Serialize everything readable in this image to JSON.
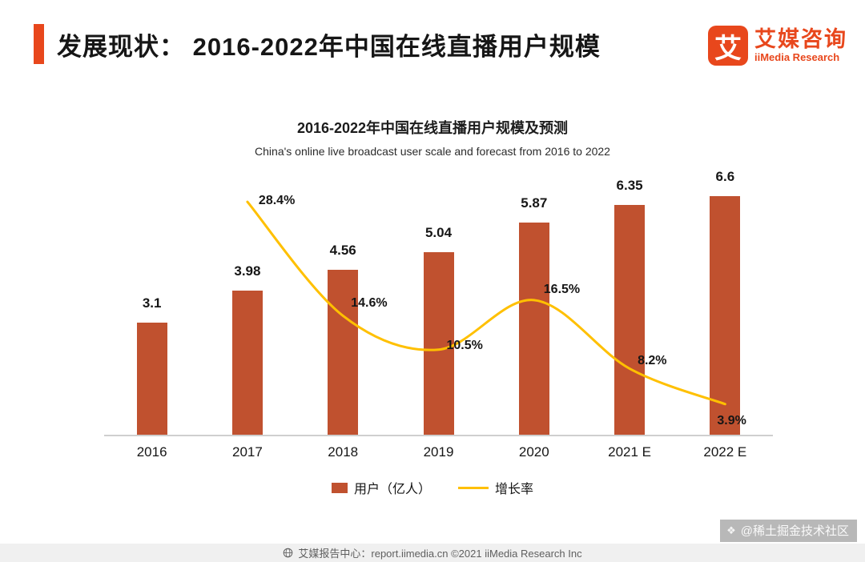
{
  "header": {
    "title": "发展现状：  2016-2022年中国在线直播用户规模",
    "accent_color": "#E8471C",
    "logo": {
      "mark": "艾",
      "name_cn": "艾媒咨询",
      "name_en": "iiMedia Research",
      "color": "#E8471C"
    }
  },
  "chart_data": {
    "type": "bar",
    "title": "2016-2022年中国在线直播用户规模及预测",
    "subtitle": "China's online live broadcast user scale and forecast from 2016 to 2022",
    "categories": [
      "2016",
      "2017",
      "2018",
      "2019",
      "2020",
      "2021 E",
      "2022 E"
    ],
    "series": [
      {
        "name": "用户（亿人）",
        "type": "bar",
        "color": "#C0512F",
        "values": [
          3.1,
          3.98,
          4.56,
          5.04,
          5.87,
          6.35,
          6.6
        ],
        "labels": [
          "3.1",
          "3.98",
          "4.56",
          "5.04",
          "5.87",
          "6.35",
          "6.6"
        ]
      },
      {
        "name": "增长率",
        "type": "line",
        "color": "#FFC000",
        "values": [
          null,
          28.4,
          14.6,
          10.5,
          16.5,
          8.2,
          3.9
        ],
        "labels": [
          "",
          "28.4%",
          "14.6%",
          "10.5%",
          "16.5%",
          "8.2%",
          "3.9%"
        ]
      }
    ],
    "ylim": [
      0,
      7.3
    ],
    "y2lim": [
      0,
      32
    ],
    "grid": false,
    "legend_position": "bottom"
  },
  "legend": [
    {
      "label": "用户（亿人）",
      "swatch": "bar",
      "color": "#C0512F"
    },
    {
      "label": "增长率",
      "swatch": "line",
      "color": "#FFC000"
    }
  ],
  "footer": {
    "text": "艾媒报告中心：report.iimedia.cn   ©2021   iiMedia Research  Inc",
    "watermark": "@稀土掘金技术社区"
  }
}
